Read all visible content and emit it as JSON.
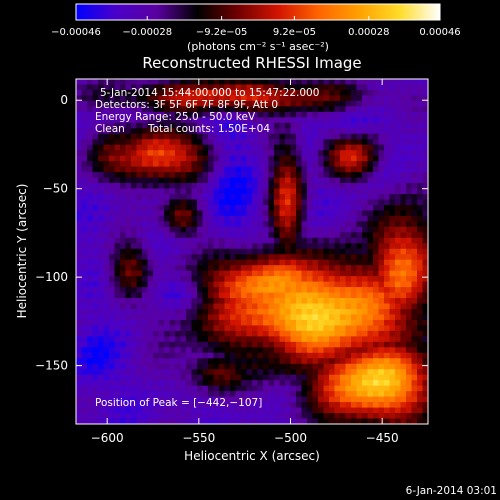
{
  "chart_data": {
    "type": "heatmap",
    "title": "Reconstructed RHESSI Image",
    "xlabel": "Heliocentric X (arcsec)",
    "ylabel": "Heliocentric Y (arcsec)",
    "xlim": [
      -617,
      -425
    ],
    "ylim": [
      -183,
      12
    ],
    "x_ticks": [
      -600,
      -550,
      -500,
      -450
    ],
    "x_tick_labels": [
      "−600",
      "−550",
      "−500",
      "−450"
    ],
    "y_ticks": [
      0,
      -50,
      -100,
      -150
    ],
    "y_tick_labels": [
      "0",
      "−50",
      "−100",
      "−150"
    ],
    "colorbar": {
      "range": [
        -0.00046,
        0.00046
      ],
      "tick_values": [
        -0.00046,
        -0.00028,
        -9.2e-05,
        9.2e-05,
        0.00028,
        0.00046
      ],
      "tick_labels": [
        "−0.00046",
        "−0.00028",
        "−9.2e−05",
        "9.2e−05",
        "0.00028",
        "0.00046"
      ],
      "units": "(photons cm⁻² s⁻¹ asec⁻²)",
      "colors": [
        "#0000ff",
        "#4a00c8",
        "#5a00a0",
        "#000000",
        "#700000",
        "#d21400",
        "#ff6400",
        "#ffa000",
        "#ffdc28",
        "#ffffff"
      ]
    },
    "annotations": [
      "5-Jan-2014 15:44:00.000 to 15:47:22.000",
      "Detectors: 3F 5F 6F 7F 8F 9F, Att 0",
      "Energy Range: 25.0 - 50.0 keV",
      "Clean",
      "Total counts: 1.50E+04"
    ],
    "peak_label": "Position of Peak = [−442,−107]",
    "footer_date": "6-Jan-2014 03:01"
  }
}
